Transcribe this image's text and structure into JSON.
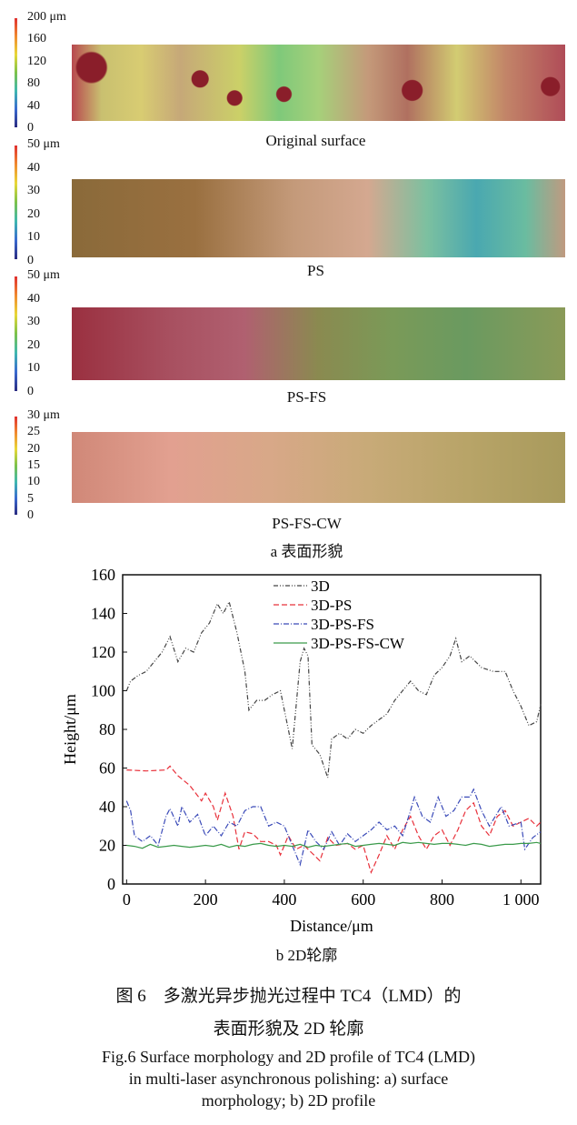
{
  "panel_a": {
    "surfaces": [
      {
        "label": "Original surface",
        "colorbar": [
          "200 μm",
          "160",
          "120",
          "80",
          "40",
          "0"
        ]
      },
      {
        "label": "PS",
        "colorbar": [
          "50 μm",
          "40",
          "30",
          "20",
          "10",
          "0"
        ]
      },
      {
        "label": "PS-FS",
        "colorbar": [
          "50 μm",
          "40",
          "30",
          "20",
          "10",
          "0"
        ]
      },
      {
        "label": "PS-FS-CW",
        "colorbar": [
          "30 μm",
          "25",
          "20",
          "15",
          "10",
          "5",
          "0"
        ]
      }
    ],
    "sublabel": "a 表面形貌"
  },
  "panel_b_sublabel": "b 2D轮廓",
  "caption": {
    "cn_line1": "图 6　多激光异步抛光过程中 TC4（LMD）的",
    "cn_line2": "表面形貌及 2D 轮廓",
    "en_line1": "Fig.6 Surface morphology and 2D profile of TC4 (LMD)",
    "en_line2": "in multi-laser asynchronous polishing: a) surface",
    "en_line3": "morphology; b) 2D profile"
  },
  "chart_data": {
    "type": "line",
    "xlabel": "Distance/μm",
    "ylabel": "Height/μm",
    "xlim": [
      -10,
      1050
    ],
    "ylim": [
      0,
      160
    ],
    "xticks": [
      0,
      200,
      400,
      600,
      800,
      1000
    ],
    "xtick_labels": [
      "0",
      "200",
      "400",
      "600",
      "800",
      "1 000"
    ],
    "yticks": [
      0,
      20,
      40,
      60,
      80,
      100,
      120,
      140,
      160
    ],
    "legend_position": "top-center",
    "grid": false,
    "series": [
      {
        "name": "3D",
        "color": "#444444",
        "dash": "dash-dot-dot",
        "x": [
          0,
          10,
          30,
          50,
          70,
          90,
          110,
          130,
          150,
          170,
          190,
          210,
          230,
          245,
          260,
          280,
          300,
          310,
          330,
          350,
          370,
          390,
          410,
          420,
          440,
          450,
          460,
          470,
          490,
          510,
          520,
          540,
          560,
          580,
          600,
          620,
          640,
          660,
          680,
          700,
          720,
          740,
          760,
          780,
          800,
          820,
          835,
          850,
          870,
          900,
          930,
          960,
          980,
          1000,
          1020,
          1040,
          1050
        ],
        "y": [
          100,
          105,
          108,
          110,
          115,
          120,
          128,
          115,
          122,
          120,
          130,
          135,
          145,
          140,
          146,
          130,
          110,
          90,
          95,
          95,
          98,
          100,
          80,
          70,
          115,
          122,
          118,
          72,
          67,
          55,
          75,
          78,
          75,
          80,
          78,
          82,
          85,
          88,
          95,
          100,
          105,
          100,
          98,
          108,
          112,
          118,
          127,
          115,
          118,
          112,
          110,
          110,
          100,
          92,
          82,
          84,
          93
        ]
      },
      {
        "name": "3D-PS",
        "color": "#e8303a",
        "dash": "dash",
        "x": [
          0,
          50,
          100,
          110,
          130,
          160,
          190,
          200,
          220,
          230,
          250,
          270,
          285,
          300,
          320,
          340,
          360,
          380,
          390,
          410,
          430,
          450,
          470,
          490,
          510,
          530,
          560,
          580,
          600,
          620,
          640,
          660,
          680,
          700,
          720,
          740,
          760,
          780,
          800,
          820,
          840,
          860,
          880,
          900,
          920,
          940,
          960,
          980,
          1000,
          1020,
          1040,
          1050
        ],
        "y": [
          59,
          58.5,
          59,
          61,
          56,
          51,
          43,
          47,
          40,
          33,
          47,
          35,
          18,
          27,
          26,
          22,
          22,
          20,
          15,
          25,
          18,
          20,
          16,
          12,
          24,
          20,
          21,
          18,
          20,
          6,
          15,
          25,
          18,
          28,
          35,
          25,
          18,
          25,
          28,
          20,
          28,
          38,
          42,
          30,
          25,
          35,
          38,
          30,
          32,
          34,
          30,
          32
        ]
      },
      {
        "name": "3D-PS-FS",
        "color": "#3a4ab8",
        "dash": "dash-dot",
        "x": [
          0,
          10,
          20,
          40,
          60,
          80,
          100,
          110,
          130,
          140,
          160,
          180,
          200,
          220,
          240,
          260,
          280,
          300,
          320,
          340,
          360,
          380,
          400,
          420,
          440,
          460,
          480,
          500,
          520,
          540,
          560,
          580,
          600,
          620,
          640,
          660,
          680,
          700,
          720,
          730,
          750,
          770,
          790,
          810,
          830,
          850,
          870,
          880,
          900,
          920,
          950,
          970,
          1000,
          1010,
          1030,
          1050
        ],
        "y": [
          43,
          38,
          25,
          22,
          25,
          20,
          35,
          39,
          30,
          40,
          32,
          36,
          25,
          30,
          25,
          32,
          30,
          38,
          40,
          40,
          30,
          32,
          30,
          20,
          10,
          28,
          22,
          18,
          27,
          20,
          26,
          22,
          25,
          28,
          32,
          28,
          30,
          25,
          38,
          45,
          35,
          32,
          45,
          35,
          38,
          45,
          45,
          49,
          38,
          30,
          40,
          30,
          32,
          18,
          24,
          27
        ]
      },
      {
        "name": "3D-PS-FS-CW",
        "color": "#3a9a4a",
        "dash": "solid",
        "x": [
          0,
          20,
          40,
          60,
          80,
          100,
          120,
          140,
          160,
          180,
          200,
          220,
          240,
          260,
          280,
          300,
          320,
          340,
          360,
          380,
          400,
          420,
          440,
          460,
          480,
          500,
          520,
          540,
          560,
          580,
          600,
          620,
          640,
          660,
          680,
          700,
          720,
          740,
          760,
          780,
          800,
          820,
          840,
          860,
          880,
          900,
          920,
          940,
          960,
          980,
          1000,
          1020,
          1040,
          1050
        ],
        "y": [
          20,
          19.5,
          18.5,
          20.5,
          19,
          19.5,
          20,
          19.5,
          19,
          19.5,
          20,
          19.5,
          20.5,
          19,
          20,
          19.5,
          20.5,
          21,
          20,
          19.5,
          20,
          19.5,
          20.5,
          19,
          20,
          19.5,
          20,
          20.5,
          21,
          19.5,
          20,
          20.5,
          21,
          20.5,
          20,
          21.5,
          21,
          21.5,
          21,
          20.5,
          21,
          21,
          20.5,
          20,
          21,
          20.5,
          19.5,
          20,
          20.5,
          20.5,
          21,
          21,
          21.5,
          21
        ]
      }
    ]
  }
}
